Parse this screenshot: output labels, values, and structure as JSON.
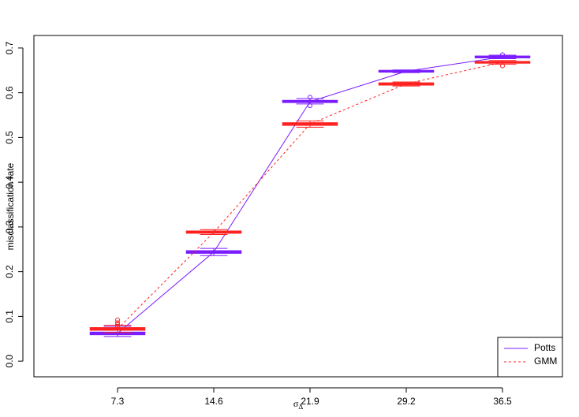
{
  "chart_data": {
    "type": "boxplot",
    "y_label": "misclassification rate",
    "x_label": "σ",
    "x_label_sub": "Δ",
    "categories": [
      "7.3",
      "14.6",
      "21.9",
      "29.2",
      "36.5"
    ],
    "ylim": [
      -0.035,
      0.728
    ],
    "yticks": [
      {
        "value": 0,
        "label": "0.0"
      },
      0.1,
      0.2,
      0.3,
      0.4,
      0.5,
      0.6,
      0.7
    ],
    "legend": "bottom-right",
    "series": [
      {
        "name": "Potts",
        "color": "#7a1cff",
        "line": "solid",
        "median": [
          0.062,
          0.244,
          0.58,
          0.648,
          0.68
        ],
        "q1": [
          0.059,
          0.241,
          0.578,
          0.646,
          0.678
        ],
        "q3": [
          0.065,
          0.247,
          0.583,
          0.65,
          0.682
        ],
        "low": [
          0.055,
          0.236,
          0.575,
          0.645,
          0.676
        ],
        "high": [
          0.078,
          0.252,
          0.587,
          0.651,
          0.684
        ],
        "outliers": [
          [],
          [],
          [
            0.59,
            0.571
          ],
          [],
          [
            0.685
          ]
        ]
      },
      {
        "name": "GMM",
        "color": "#ff2020",
        "line": "dashed",
        "median": [
          0.072,
          0.288,
          0.53,
          0.62,
          0.668
        ],
        "q1": [
          0.069,
          0.286,
          0.527,
          0.617,
          0.666
        ],
        "q3": [
          0.075,
          0.291,
          0.533,
          0.622,
          0.67
        ],
        "low": [
          0.064,
          0.283,
          0.523,
          0.615,
          0.664
        ],
        "high": [
          0.08,
          0.294,
          0.537,
          0.624,
          0.672
        ],
        "outliers": [
          [
            0.092,
            0.086,
            0.082,
            0.078
          ],
          [],
          [],
          [],
          [
            0.66
          ]
        ]
      }
    ]
  }
}
